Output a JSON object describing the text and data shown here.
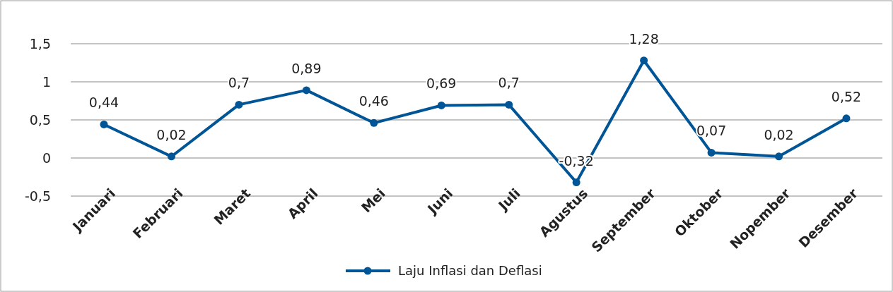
{
  "chart_data": {
    "type": "line",
    "categories": [
      "Januari",
      "Februari",
      "Maret",
      "April",
      "Mei",
      "Juni",
      "Juli",
      "Agustus",
      "September",
      "Oktober",
      "Nopember",
      "Desember"
    ],
    "series": [
      {
        "name": "Laju Inflasi dan Deflasi",
        "color": "#005596",
        "values": [
          0.44,
          0.02,
          0.7,
          0.89,
          0.46,
          0.69,
          0.7,
          -0.32,
          1.28,
          0.07,
          0.02,
          0.52
        ],
        "value_labels": [
          "0,44",
          "0,02",
          "0,7",
          "0,89",
          "0,46",
          "0,69",
          "0,7",
          "-0,32",
          "1,28",
          "0,07",
          "0,02",
          "0,52"
        ]
      }
    ],
    "ylim": [
      -0.5,
      1.5
    ],
    "yticks": [
      {
        "value": -0.5,
        "label": "-0,5"
      },
      0,
      {
        "value": 0.5,
        "label": "0,5"
      },
      1,
      {
        "value": 1.5,
        "label": "1,5"
      }
    ],
    "grid": "y",
    "legend": "bottom",
    "marker": "circle",
    "line_style": "solid"
  }
}
